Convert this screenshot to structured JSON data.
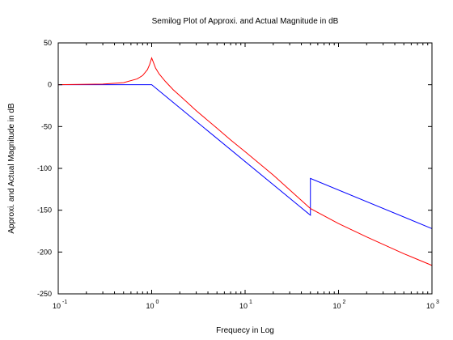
{
  "chart_data": {
    "type": "line",
    "title": "Semilog Plot of Approxi. and Actual Magnitude in dB",
    "xlabel": "Frequecy in Log",
    "ylabel": "Approxi. and Actual Magnitude in dB",
    "x_scale": "log",
    "xlim": [
      0.1,
      1000
    ],
    "ylim": [
      -250,
      50
    ],
    "grid": false,
    "x_ticks": [
      {
        "value": 0.1,
        "base": "10",
        "exp": "-1"
      },
      {
        "value": 1,
        "base": "10",
        "exp": "0"
      },
      {
        "value": 10,
        "base": "10",
        "exp": "1"
      },
      {
        "value": 100,
        "base": "10",
        "exp": "2"
      },
      {
        "value": 1000,
        "base": "10",
        "exp": "3"
      }
    ],
    "y_ticks": [
      {
        "value": 50,
        "label": "50"
      },
      {
        "value": 0,
        "label": "0"
      },
      {
        "value": -50,
        "label": "-50"
      },
      {
        "value": -100,
        "label": "-100"
      },
      {
        "value": -150,
        "label": "-150"
      },
      {
        "value": -200,
        "label": "-200"
      },
      {
        "value": -250,
        "label": "-250"
      }
    ],
    "series": [
      {
        "color": "#0000ff",
        "x": [
          0.1,
          1,
          50,
          50,
          1000
        ],
        "y": [
          0,
          0,
          -156,
          -112,
          -172
        ]
      },
      {
        "color": "#ff0000",
        "x": [
          0.1,
          0.3,
          0.5,
          0.7,
          0.8,
          0.9,
          0.95,
          1.0,
          1.05,
          1.1,
          1.2,
          1.4,
          1.7,
          2,
          3,
          5,
          7,
          10,
          20,
          50,
          100,
          200,
          500,
          1000
        ],
        "y": [
          0,
          0.8,
          2.5,
          7,
          11,
          18,
          24,
          32,
          26,
          20,
          13,
          4,
          -6,
          -13,
          -31,
          -52,
          -66,
          -80,
          -108,
          -148,
          -166,
          -182,
          -202,
          -216
        ]
      }
    ]
  }
}
